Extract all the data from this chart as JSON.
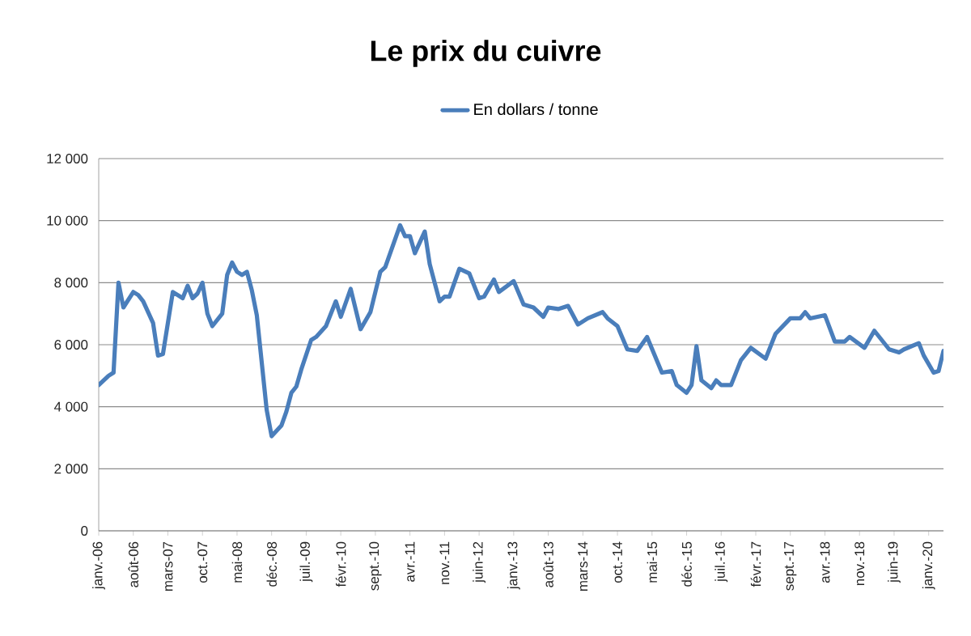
{
  "chart_data": {
    "type": "line",
    "title": "Le prix du cuivre",
    "x": [
      "2006-01",
      "2006-03",
      "2006-04",
      "2006-05",
      "2006-06",
      "2006-08",
      "2006-09",
      "2006-10",
      "2006-12",
      "2007-01",
      "2007-02",
      "2007-04",
      "2007-06",
      "2007-07",
      "2007-08",
      "2007-09",
      "2007-10",
      "2007-11",
      "2007-12",
      "2008-02",
      "2008-03",
      "2008-04",
      "2008-05",
      "2008-06",
      "2008-07",
      "2008-08",
      "2008-09",
      "2008-11",
      "2008-12",
      "2009-02",
      "2009-03",
      "2009-04",
      "2009-05",
      "2009-06",
      "2009-08",
      "2009-09",
      "2009-11",
      "2010-01",
      "2010-02",
      "2010-04",
      "2010-06",
      "2010-08",
      "2010-10",
      "2010-11",
      "2011-02",
      "2011-03",
      "2011-04",
      "2011-05",
      "2011-07",
      "2011-08",
      "2011-10",
      "2011-11",
      "2011-12",
      "2012-02",
      "2012-04",
      "2012-06",
      "2012-07",
      "2012-09",
      "2012-10",
      "2013-01",
      "2013-03",
      "2013-05",
      "2013-07",
      "2013-08",
      "2013-10",
      "2013-12",
      "2014-02",
      "2014-04",
      "2014-07",
      "2014-08",
      "2014-10",
      "2014-12",
      "2015-02",
      "2015-04",
      "2015-07",
      "2015-09",
      "2015-10",
      "2015-12",
      "2016-01",
      "2016-02",
      "2016-03",
      "2016-05",
      "2016-06",
      "2016-07",
      "2016-09",
      "2016-11",
      "2017-01",
      "2017-04",
      "2017-06",
      "2017-09",
      "2017-11",
      "2017-12",
      "2018-01",
      "2018-04",
      "2018-06",
      "2018-08",
      "2018-09",
      "2018-12",
      "2019-02",
      "2019-05",
      "2019-07",
      "2019-08",
      "2019-11",
      "2019-12",
      "2020-02",
      "2020-03",
      "2020-04"
    ],
    "series": [
      {
        "name": "En dollars / tonne",
        "color": "#4a7ebb",
        "values": [
          4700,
          5000,
          5100,
          8000,
          7200,
          7700,
          7600,
          7400,
          6700,
          5650,
          5700,
          7700,
          7500,
          7900,
          7500,
          7650,
          8000,
          7000,
          6600,
          7000,
          8250,
          8650,
          8350,
          8250,
          8350,
          7750,
          6950,
          3900,
          3050,
          3400,
          3850,
          4450,
          4650,
          5200,
          6150,
          6250,
          6600,
          7400,
          6900,
          7800,
          6500,
          7050,
          8350,
          8500,
          9850,
          9500,
          9500,
          8950,
          9650,
          8600,
          7400,
          7550,
          7550,
          8450,
          8300,
          7500,
          7550,
          8100,
          7700,
          8050,
          7300,
          7200,
          6900,
          7200,
          7150,
          7250,
          6650,
          6850,
          7050,
          6850,
          6600,
          5850,
          5800,
          6250,
          5100,
          5150,
          4700,
          4450,
          4700,
          5950,
          4850,
          4600,
          4850,
          4700,
          4700,
          5500,
          5900,
          5550,
          6350,
          6850,
          6850,
          7050,
          6850,
          6950,
          6100,
          6100,
          6250,
          5900,
          6450,
          5850,
          5750,
          5850,
          6050,
          5650,
          5100,
          5150,
          5800
        ]
      }
    ],
    "xlim": [
      "2006-01",
      "2020-04"
    ],
    "xticks": [
      {
        "value": "2006-01",
        "label": "janv.-06"
      },
      {
        "value": "2006-08",
        "label": "août-06"
      },
      {
        "value": "2007-03",
        "label": "mars-07"
      },
      {
        "value": "2007-10",
        "label": "oct.-07"
      },
      {
        "value": "2008-05",
        "label": "mai-08"
      },
      {
        "value": "2008-12",
        "label": "déc.-08"
      },
      {
        "value": "2009-07",
        "label": "juil.-09"
      },
      {
        "value": "2010-02",
        "label": "févr.-10"
      },
      {
        "value": "2010-09",
        "label": "sept.-10"
      },
      {
        "value": "2011-04",
        "label": "avr.-11"
      },
      {
        "value": "2011-11",
        "label": "nov.-11"
      },
      {
        "value": "2012-06",
        "label": "juin-12"
      },
      {
        "value": "2013-01",
        "label": "janv.-13"
      },
      {
        "value": "2013-08",
        "label": "août-13"
      },
      {
        "value": "2014-03",
        "label": "mars-14"
      },
      {
        "value": "2014-10",
        "label": "oct.-14"
      },
      {
        "value": "2015-05",
        "label": "mai-15"
      },
      {
        "value": "2015-12",
        "label": "déc.-15"
      },
      {
        "value": "2016-07",
        "label": "juil.-16"
      },
      {
        "value": "2017-02",
        "label": "févr.-17"
      },
      {
        "value": "2017-09",
        "label": "sept.-17"
      },
      {
        "value": "2018-04",
        "label": "avr.-18"
      },
      {
        "value": "2018-11",
        "label": "nov.-18"
      },
      {
        "value": "2019-06",
        "label": "juin-19"
      },
      {
        "value": "2020-01",
        "label": "janv.-20"
      }
    ],
    "ylim": [
      0,
      12000
    ],
    "yticks": [
      0,
      {
        "value": 2000,
        "label": "2 000"
      },
      {
        "value": 4000,
        "label": "4 000"
      },
      {
        "value": 6000,
        "label": "6 000"
      },
      {
        "value": 8000,
        "label": "8 000"
      },
      {
        "value": 10000,
        "label": "10 000"
      },
      {
        "value": 12000,
        "label": "12 000"
      }
    ],
    "grid": "y",
    "legend": "top",
    "marker": "none",
    "line_style": "solid"
  }
}
